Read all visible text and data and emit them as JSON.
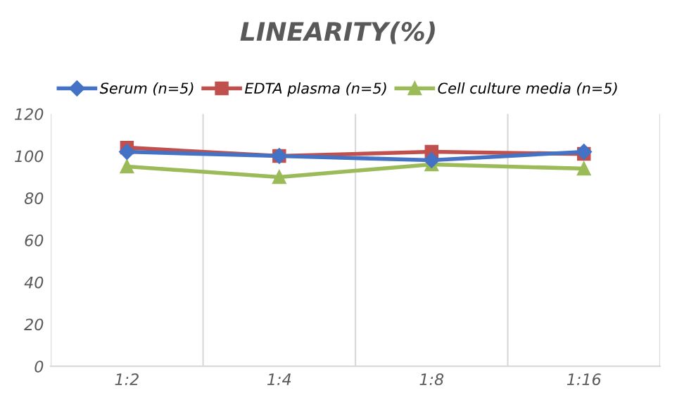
{
  "chart_data": {
    "type": "line",
    "title": "LINEARITY(%)",
    "categories": [
      "1:2",
      "1:4",
      "1:8",
      "1:16"
    ],
    "series": [
      {
        "name": "Serum (n=5)",
        "color": "#4472c4",
        "marker": "diamond",
        "values": [
          102,
          100,
          98,
          102
        ]
      },
      {
        "name": "EDTA plasma (n=5)",
        "color": "#c0504d",
        "marker": "square",
        "values": [
          104,
          100,
          102,
          101
        ]
      },
      {
        "name": "Cell culture media (n=5)",
        "color": "#9bbb59",
        "marker": "triangle",
        "values": [
          95,
          90,
          96,
          94
        ]
      }
    ],
    "ylim": [
      0,
      120
    ],
    "yticks": [
      0,
      20,
      40,
      60,
      80,
      100,
      120
    ],
    "grid": "x",
    "legend": "top",
    "line_style": "solid"
  }
}
